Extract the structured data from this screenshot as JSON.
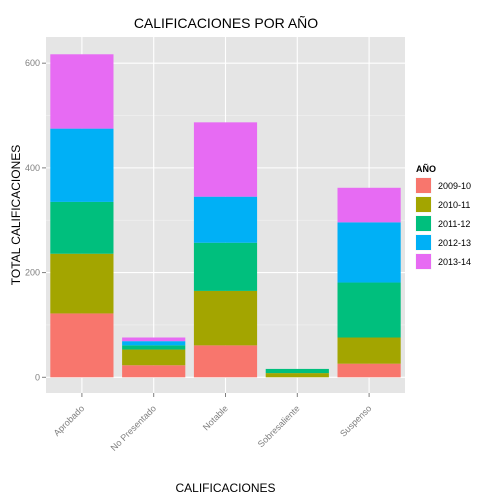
{
  "chart_data": {
    "type": "bar",
    "stacked": true,
    "title": "CALIFICACIONES POR AÑO",
    "xlabel": "CALIFICACIONES",
    "ylabel": "TOTAL CALIFICACIONES",
    "categories": [
      "Aprobado",
      "No Presentado",
      "Notable",
      "Sobresaliente",
      "Suspenso"
    ],
    "ylim": [
      0,
      650
    ],
    "yticks": [
      0,
      200,
      400,
      600
    ],
    "grid": true,
    "legend": {
      "title": "AÑO",
      "position": "right"
    },
    "series": [
      {
        "name": "2009-10",
        "color": "#F8766D",
        "values": [
          122,
          23,
          61,
          0,
          26
        ]
      },
      {
        "name": "2010-11",
        "color": "#A3A500",
        "values": [
          114,
          30,
          104,
          8,
          50
        ]
      },
      {
        "name": "2011-12",
        "color": "#00BF7D",
        "values": [
          99,
          8,
          92,
          8,
          105
        ]
      },
      {
        "name": "2012-13",
        "color": "#00B0F6",
        "values": [
          140,
          8,
          88,
          0,
          115
        ]
      },
      {
        "name": "2013-14",
        "color": "#E76BF3",
        "values": [
          142,
          7,
          142,
          0,
          66
        ]
      }
    ]
  }
}
